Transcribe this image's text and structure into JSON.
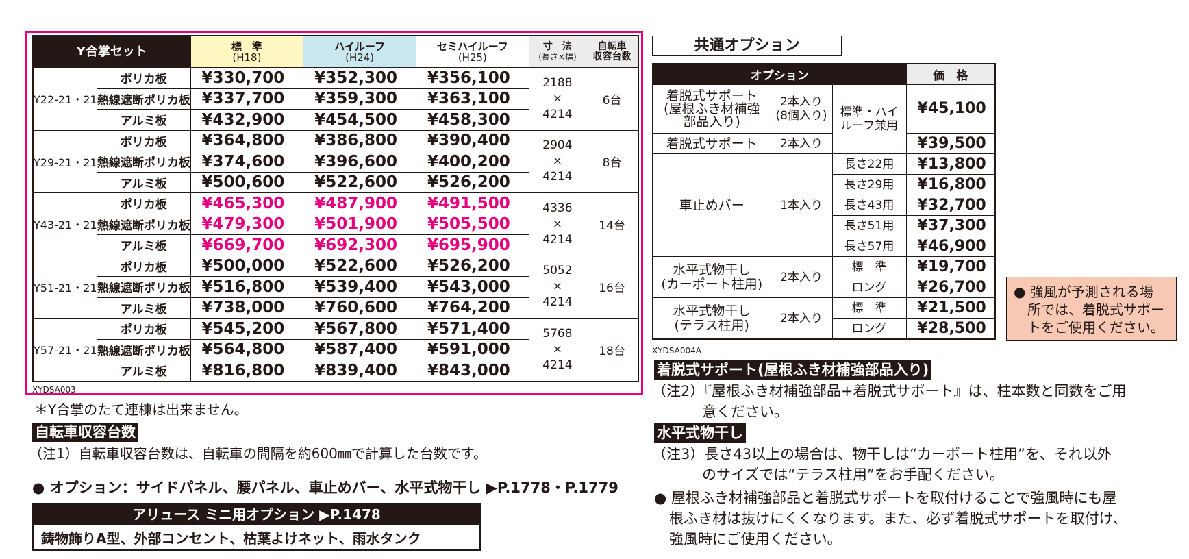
{
  "main_table": {
    "headers": {
      "set": "Y合掌セット",
      "std": "標　準",
      "std_sub": "(H18)",
      "high": "ハイルーフ",
      "high_sub": "(H24)",
      "semi": "セミハイルーフ",
      "semi_sub": "(H25)",
      "dim": "寸　法",
      "dim_sub": "(長さ×幅)",
      "bike": "自転車",
      "bike_sub": "収容台数"
    },
    "groups": [
      {
        "model": "Y22-21・21",
        "len": "2188",
        "x": "×",
        "wid": "4214",
        "bikes": "6台",
        "rows": [
          {
            "roof": "ポリカ板",
            "std": "¥330,700",
            "high": "¥352,300",
            "semi": "¥356,100"
          },
          {
            "roof": "熱線遮断ポリカ板",
            "std": "¥337,700",
            "high": "¥359,300",
            "semi": "¥363,100"
          },
          {
            "roof": "アルミ板",
            "std": "¥432,900",
            "high": "¥454,500",
            "semi": "¥458,300"
          }
        ]
      },
      {
        "model": "Y29-21・21",
        "len": "2904",
        "x": "×",
        "wid": "4214",
        "bikes": "8台",
        "rows": [
          {
            "roof": "ポリカ板",
            "std": "¥364,800",
            "high": "¥386,800",
            "semi": "¥390,400"
          },
          {
            "roof": "熱線遮断ポリカ板",
            "std": "¥374,600",
            "high": "¥396,600",
            "semi": "¥400,200"
          },
          {
            "roof": "アルミ板",
            "std": "¥500,600",
            "high": "¥522,600",
            "semi": "¥526,200"
          }
        ]
      },
      {
        "model": "Y43-21・21",
        "len": "4336",
        "x": "×",
        "wid": "4214",
        "bikes": "14台",
        "rows": [
          {
            "roof": "ポリカ板",
            "std": "¥465,300",
            "high": "¥487,900",
            "semi": "¥491,500"
          },
          {
            "roof": "熱線遮断ポリカ板",
            "std": "¥479,300",
            "high": "¥501,900",
            "semi": "¥505,500"
          },
          {
            "roof": "アルミ板",
            "std": "¥669,700",
            "high": "¥692,300",
            "semi": "¥695,900"
          }
        ]
      },
      {
        "model": "Y51-21・21",
        "len": "5052",
        "x": "×",
        "wid": "4214",
        "bikes": "16台",
        "rows": [
          {
            "roof": "ポリカ板",
            "std": "¥500,000",
            "high": "¥522,600",
            "semi": "¥526,200"
          },
          {
            "roof": "熱線遮断ポリカ板",
            "std": "¥516,800",
            "high": "¥539,400",
            "semi": "¥543,000"
          },
          {
            "roof": "アルミ板",
            "std": "¥738,000",
            "high": "¥760,600",
            "semi": "¥764,200"
          }
        ]
      },
      {
        "model": "Y57-21・21",
        "len": "5768",
        "x": "×",
        "wid": "4214",
        "bikes": "18台",
        "rows": [
          {
            "roof": "ポリカ板",
            "std": "¥545,200",
            "high": "¥567,800",
            "semi": "¥571,400"
          },
          {
            "roof": "熱線遮断ポリカ板",
            "std": "¥564,800",
            "high": "¥587,400",
            "semi": "¥591,000"
          },
          {
            "roof": "アルミ板",
            "std": "¥816,800",
            "high": "¥839,400",
            "semi": "¥843,000"
          }
        ]
      }
    ],
    "highlight_color": "#e4007f",
    "code": "XYDSA003"
  },
  "notes_left": {
    "note_y": "＊Y合掌のたて連棟は出来ません。",
    "bike_heading": "自転車収容台数",
    "note1": "（注1）自転車収容台数は、自転車の間隔を約600㎜で計算した台数です。",
    "options_line": "● オプション：サイドパネル、腰パネル、車止めバー、水平式物干し ▶P.1778・P.1779",
    "mini_heading": "アリュース ミニ用オプション ▶P.1478",
    "mini_items": "鋳物飾りA型、外部コンセント、枯葉よけネット、雨水タンク"
  },
  "option_table": {
    "title": "共通オプション",
    "head_option": "オプション",
    "head_price": "価　格",
    "r1_name": "着脱式サポート\n(屋根ふき材補強\n部品入り)",
    "r1_qty": "2本入り\n(8個入り)",
    "r1_type": "標準・ハイ\nルーフ兼用",
    "r1_price": "¥45,100",
    "r2_name": "着脱式サポート",
    "r2_qty": "2本入り",
    "r2_price": "¥39,500",
    "bar_name": "車止めバー",
    "bar_qty": "1本入り",
    "bar_rows": [
      {
        "len": "長さ22用",
        "price": "¥13,800"
      },
      {
        "len": "長さ29用",
        "price": "¥16,800"
      },
      {
        "len": "長さ43用",
        "price": "¥32,700"
      },
      {
        "len": "長さ51用",
        "price": "¥37,300"
      },
      {
        "len": "長さ57用",
        "price": "¥46,900"
      }
    ],
    "dry1_name": "水平式物干し\n(カーポート柱用)",
    "dry1_qty": "2本入り",
    "dry1_rows": [
      {
        "len": "標　準",
        "price": "¥19,700"
      },
      {
        "len": "ロング",
        "price": "¥26,700"
      }
    ],
    "dry2_name": "水平式物干し\n(テラス柱用)",
    "dry2_qty": "2本入り",
    "dry2_rows": [
      {
        "len": "標　準",
        "price": "¥21,500"
      },
      {
        "len": "ロング",
        "price": "¥28,500"
      }
    ],
    "code": "XYDSA004A"
  },
  "warning": {
    "line1": "● 強風が予測される場",
    "line2": "所では、着脱式サポー",
    "line3": "トをご使用ください。",
    "bg_color": "#f7c8b4"
  },
  "notes_right": {
    "support_heading": "着脱式サポート(屋根ふき材補強部品入り)",
    "note2_a": "（注2）『屋根ふき材補強部品+着脱式サポート』は、柱本数と同数をご用",
    "note2_b": "意ください。",
    "dry_heading": "水平式物干し",
    "note3_a": "（注3）長さ43以上の場合は、物干しは“カーポート柱用”を、それ以外",
    "note3_b": "のサイズでは“テラス柱用”をお手配ください。",
    "bullet_a": "● 屋根ふき材補強部品と着脱式サポートを取付けることで強風時にも屋",
    "bullet_b": "根ふき材は抜けにくくなります。また、必ず着脱式サポートを取付け、",
    "bullet_c": "強風時にご使用ください。"
  }
}
